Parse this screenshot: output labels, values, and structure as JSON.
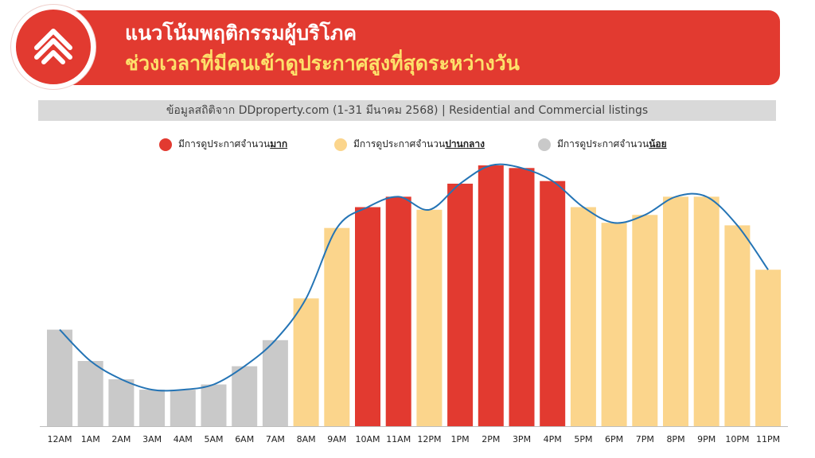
{
  "header": {
    "title_line1": "แนวโน้มพฤติกรรมผู้บริโภค",
    "title_line2": "ช่วงเวลาที่มีคนเข้าดูประกาศสูงที่สุดระหว่างวัน",
    "logo_icon": "ddproperty-logo-icon"
  },
  "source": "ข้อมูลสถิติจาก DDproperty.com (1-31 มีนาคม 2568) | Residential and Commercial listings",
  "legend": [
    {
      "prefix": "มีการดูประกาศจำนวน",
      "emphasis": "มาก",
      "color": "#e23a30"
    },
    {
      "prefix": "มีการดูประกาศจำนวน",
      "emphasis": "ปานกลาง",
      "color": "#fbd58c"
    },
    {
      "prefix": "มีการดูประกาศจำนวน",
      "emphasis": "น้อย",
      "color": "#c9c9c9"
    }
  ],
  "chart_data": {
    "type": "bar",
    "categories": [
      "12AM",
      "1AM",
      "2AM",
      "3AM",
      "4AM",
      "5AM",
      "6AM",
      "7AM",
      "8AM",
      "9AM",
      "10AM",
      "11AM",
      "12PM",
      "1PM",
      "2PM",
      "3PM",
      "4PM",
      "5PM",
      "6PM",
      "7PM",
      "8PM",
      "9PM",
      "10PM",
      "11PM"
    ],
    "values": [
      37,
      25,
      18,
      14,
      14,
      16,
      23,
      33,
      49,
      76,
      84,
      88,
      83,
      93,
      100,
      99,
      94,
      84,
      78,
      81,
      88,
      88,
      77,
      60
    ],
    "levels": [
      "low",
      "low",
      "low",
      "low",
      "low",
      "low",
      "low",
      "low",
      "medium",
      "medium",
      "high",
      "high",
      "medium",
      "high",
      "high",
      "high",
      "high",
      "medium",
      "medium",
      "medium",
      "medium",
      "medium",
      "medium",
      "medium"
    ],
    "colors": {
      "high": "#e23a30",
      "medium": "#fbd58c",
      "low": "#c9c9c9",
      "line": "#2474b5"
    },
    "ylim": [
      0,
      100
    ],
    "grid": false,
    "trend_line": true,
    "legend_position": "top-center"
  }
}
